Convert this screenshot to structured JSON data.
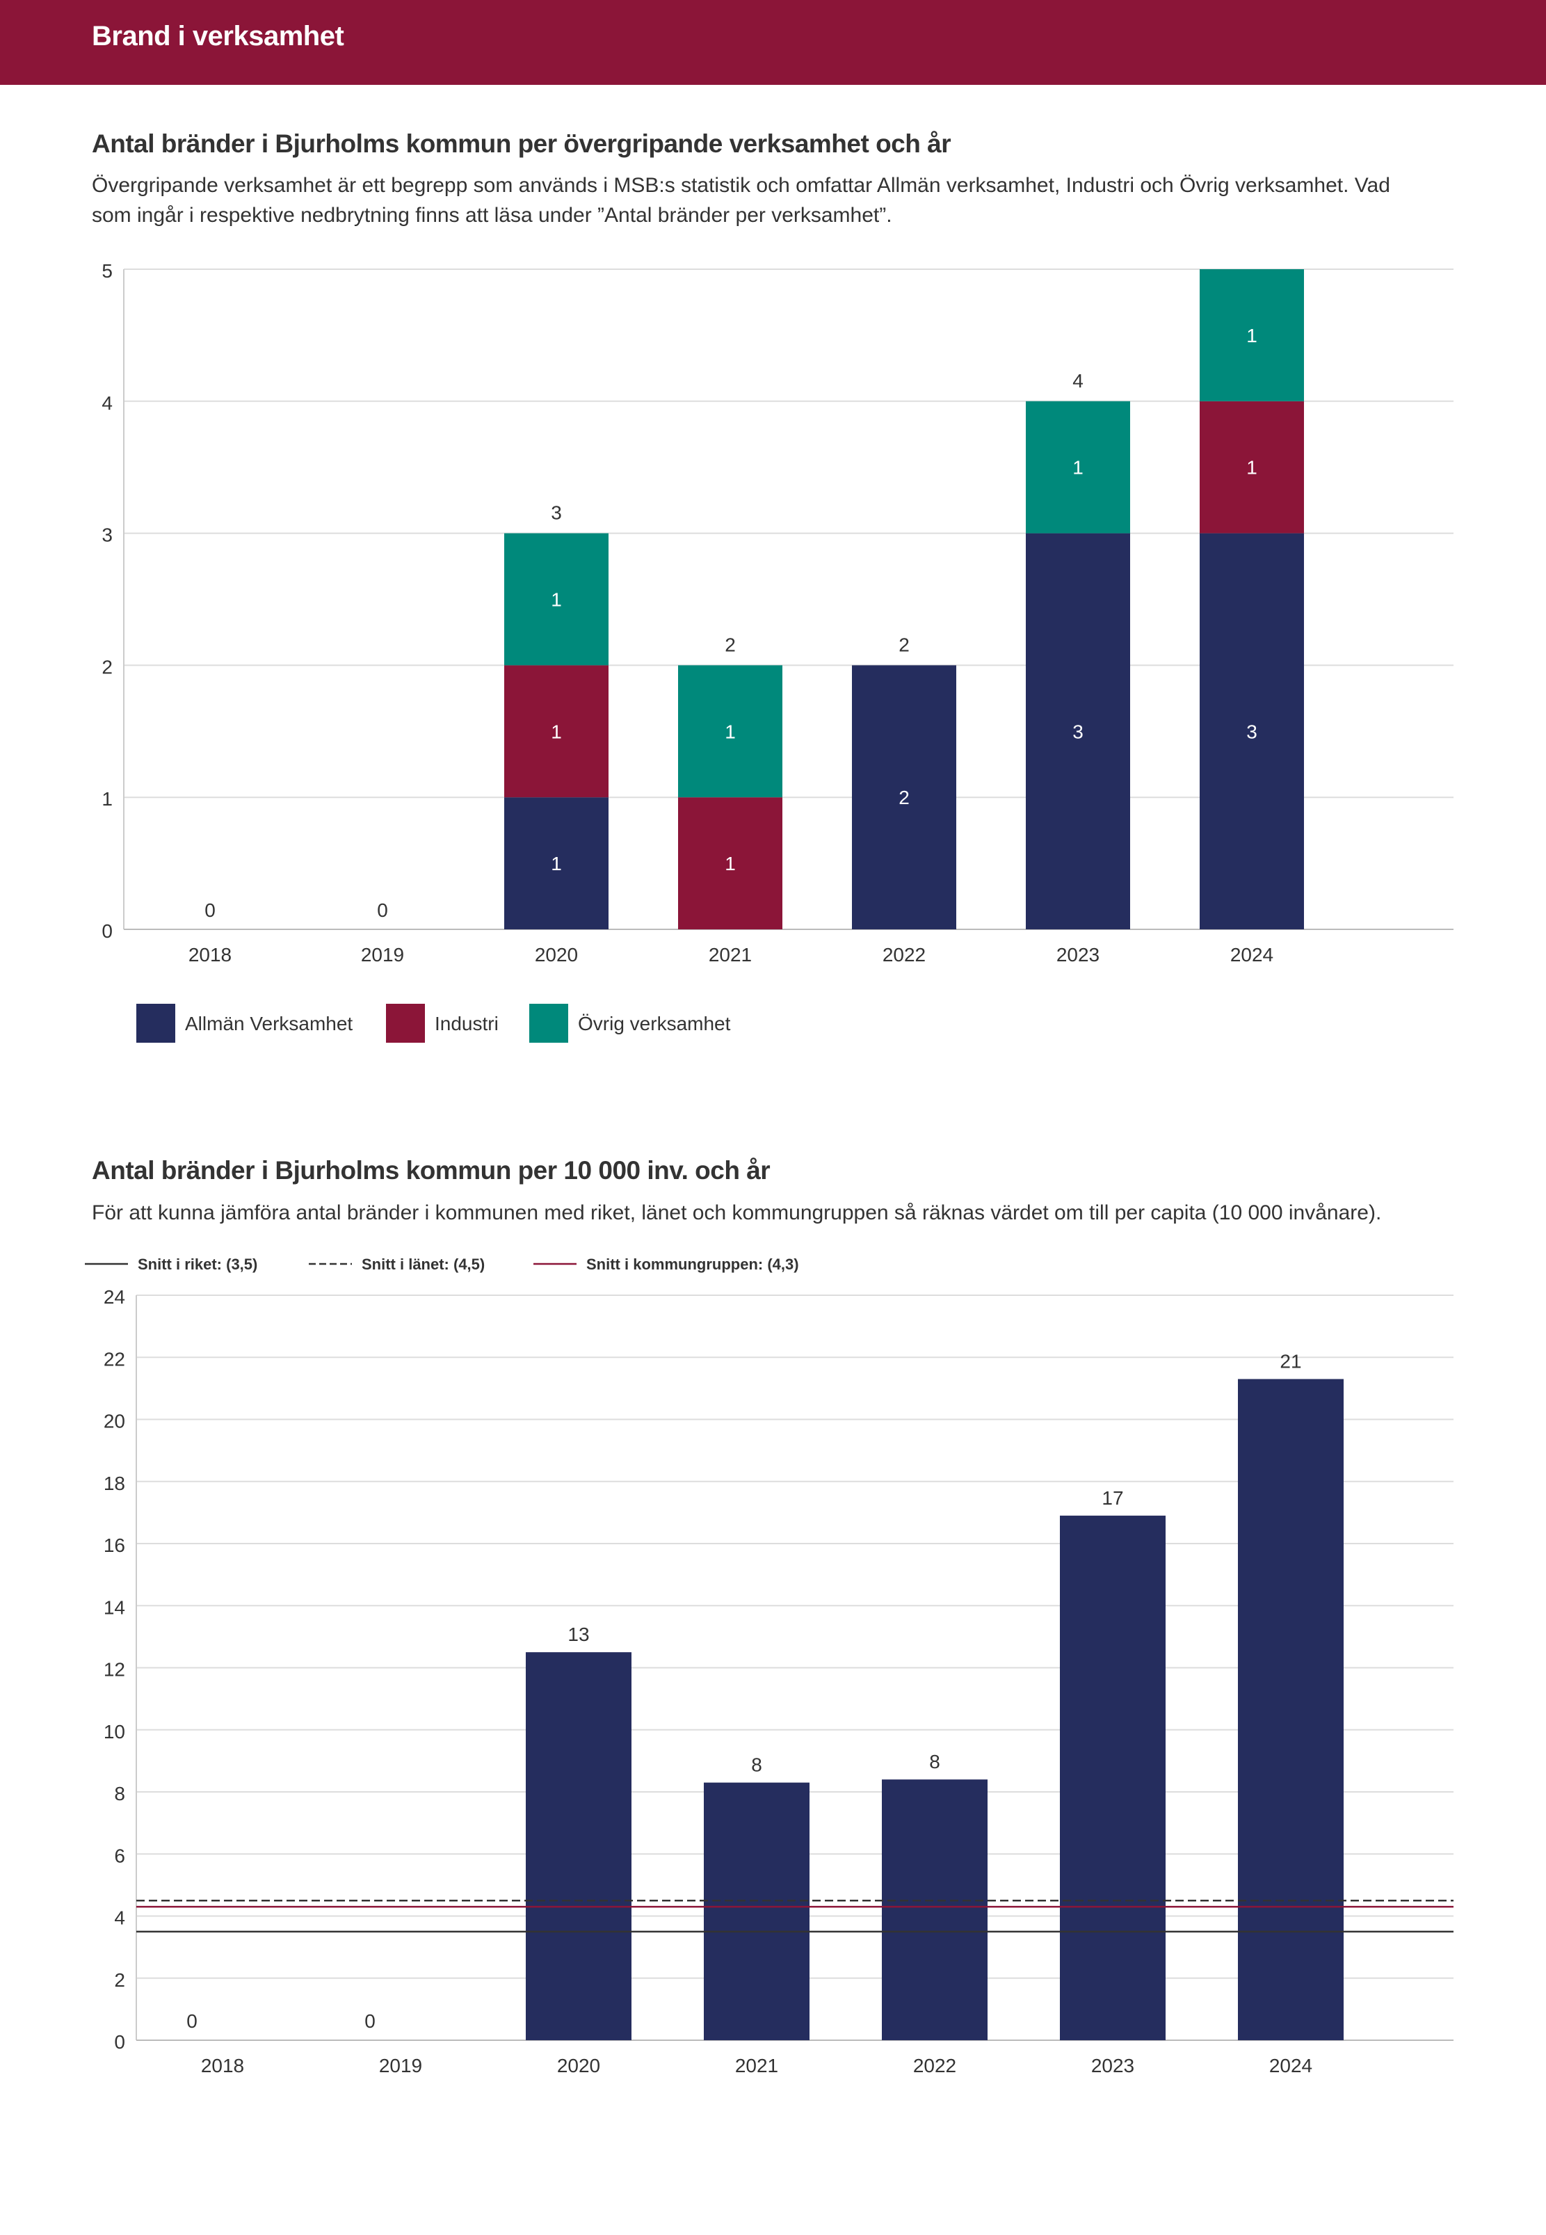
{
  "header": {
    "title": "Brand i verksamhet"
  },
  "colors": {
    "banner": "#8b1538",
    "allman": "#252d5e",
    "industri": "#8b1538",
    "ovrig": "#00897b",
    "grid": "#dddddd"
  },
  "section1": {
    "title": "Antal bränder i Bjurholms kommun per övergripande verksamhet och år",
    "desc_line1": "Övergripande verksamhet är ett begrepp som används i MSB:s statistik och omfattar Allmän verksamhet, Industri och Övrig verksamhet. Vad",
    "desc_line2": "som ingår i respektive nedbrytning finns att läsa under ”Antal bränder per verksamhet”."
  },
  "section2": {
    "title": "Antal bränder i Bjurholms kommun per 10 000 inv. och år",
    "desc": "För att kunna jämföra antal bränder i kommunen med riket, länet och kommungruppen så räknas värdet om till per capita (10 000 invånare)."
  },
  "chart_data": [
    {
      "type": "bar",
      "stacked": true,
      "title": "Antal bränder i Bjurholms kommun per övergripande verksamhet och år",
      "categories": [
        "2018",
        "2019",
        "2020",
        "2021",
        "2022",
        "2023",
        "2024"
      ],
      "series": [
        {
          "name": "Allmän Verksamhet",
          "values": [
            0,
            0,
            1,
            0,
            2,
            3,
            3
          ]
        },
        {
          "name": "Industri",
          "values": [
            0,
            0,
            1,
            1,
            0,
            0,
            1
          ]
        },
        {
          "name": "Övrig verksamhet",
          "values": [
            0,
            0,
            1,
            1,
            0,
            1,
            1
          ]
        }
      ],
      "totals": [
        0,
        0,
        3,
        2,
        2,
        4,
        5
      ],
      "ylim": [
        0,
        5
      ],
      "yticks": [
        0,
        1,
        2,
        3,
        4,
        5
      ],
      "legend": "bottom-left",
      "grid": true
    },
    {
      "type": "bar",
      "title": "Antal bränder i Bjurholms kommun per 10 000 inv. och år",
      "categories": [
        "2018",
        "2019",
        "2020",
        "2021",
        "2022",
        "2023",
        "2024"
      ],
      "values": [
        0,
        0,
        12.5,
        8.3,
        8.4,
        16.9,
        21.3
      ],
      "labels": [
        "0",
        "0",
        "13",
        "8",
        "8",
        "17",
        "21"
      ],
      "ylim": [
        0,
        24
      ],
      "yticks": [
        0,
        2,
        4,
        6,
        8,
        10,
        12,
        14,
        16,
        18,
        20,
        22,
        24
      ],
      "reference_lines": [
        {
          "label": "Snitt i riket: (3,5)",
          "value": 3.5,
          "style": "solid",
          "color": "#333333"
        },
        {
          "label": "Snitt i länet: (4,5)",
          "value": 4.5,
          "style": "dashed",
          "color": "#333333"
        },
        {
          "label": "Snitt i kommungruppen: (4,3)",
          "value": 4.3,
          "style": "solid",
          "color": "#8b1538"
        }
      ],
      "legend": "top-left",
      "grid": true
    }
  ]
}
